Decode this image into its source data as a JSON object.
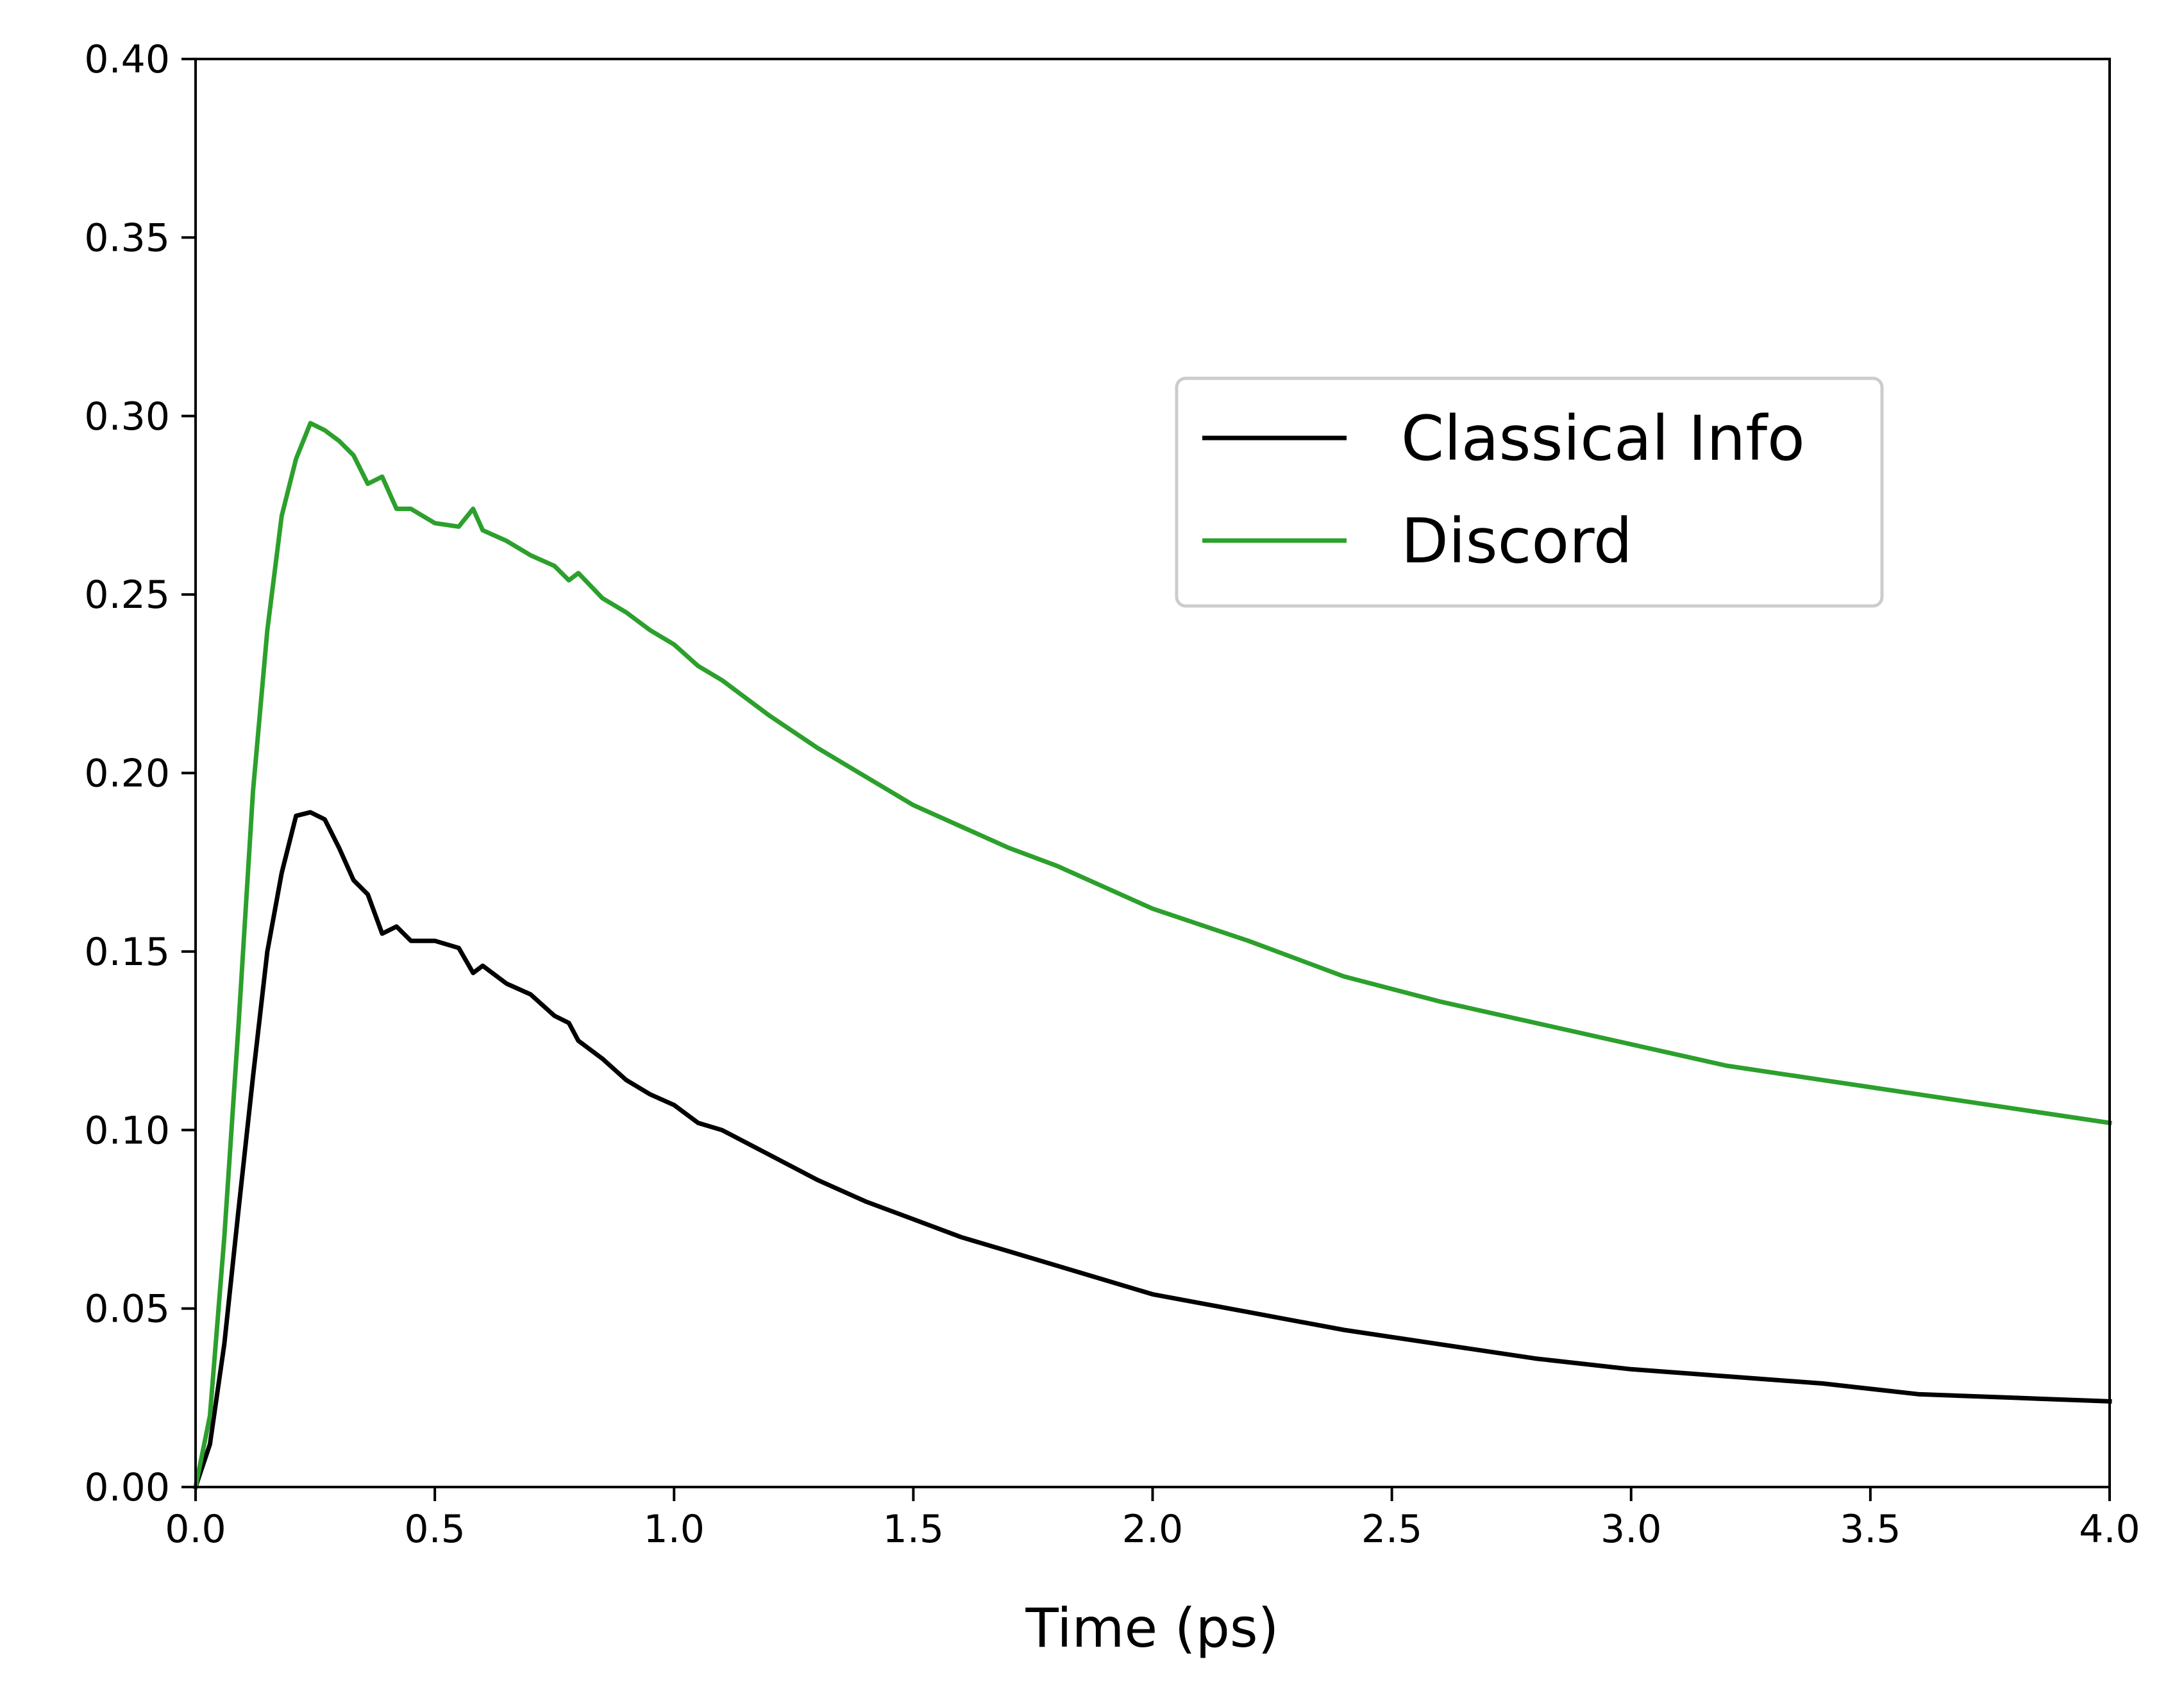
{
  "chart_data": {
    "type": "line",
    "title": "",
    "xlabel": "Time (ps)",
    "ylabel": "",
    "xlim": [
      0.0,
      4.0
    ],
    "ylim": [
      0.0,
      0.4
    ],
    "x_ticks": [
      "0.0",
      "0.5",
      "1.0",
      "1.5",
      "2.0",
      "2.5",
      "3.0",
      "3.5",
      "4.0"
    ],
    "y_ticks": [
      "0.00",
      "0.05",
      "0.10",
      "0.15",
      "0.20",
      "0.25",
      "0.30",
      "0.35",
      "0.40"
    ],
    "grid": false,
    "legend": {
      "placement": "upper-right-center"
    },
    "x": [
      0.0,
      0.03,
      0.06,
      0.09,
      0.12,
      0.15,
      0.18,
      0.21,
      0.24,
      0.27,
      0.3,
      0.33,
      0.36,
      0.39,
      0.42,
      0.45,
      0.5,
      0.55,
      0.58,
      0.6,
      0.65,
      0.7,
      0.75,
      0.78,
      0.8,
      0.85,
      0.9,
      0.95,
      1.0,
      1.05,
      1.1,
      1.2,
      1.3,
      1.4,
      1.5,
      1.6,
      1.7,
      1.8,
      1.9,
      2.0,
      2.2,
      2.4,
      2.6,
      2.8,
      3.0,
      3.2,
      3.4,
      3.6,
      3.8,
      4.0
    ],
    "series": [
      {
        "name": "Classical Info",
        "color": "#000000",
        "values": [
          0.0,
          0.012,
          0.04,
          0.078,
          0.115,
          0.15,
          0.172,
          0.188,
          0.189,
          0.187,
          0.179,
          0.17,
          0.166,
          0.155,
          0.157,
          0.153,
          0.153,
          0.151,
          0.144,
          0.146,
          0.141,
          0.138,
          0.132,
          0.13,
          0.125,
          0.12,
          0.114,
          0.11,
          0.107,
          0.102,
          0.1,
          0.093,
          0.086,
          0.08,
          0.075,
          0.07,
          0.066,
          0.062,
          0.058,
          0.054,
          0.049,
          0.044,
          0.04,
          0.036,
          0.033,
          0.031,
          0.029,
          0.026,
          0.025,
          0.024
        ]
      },
      {
        "name": "Discord",
        "color": "#2ca02c",
        "values": [
          0.0,
          0.02,
          0.07,
          0.13,
          0.195,
          0.24,
          0.272,
          0.288,
          0.298,
          0.296,
          0.293,
          0.289,
          0.281,
          0.283,
          0.274,
          0.274,
          0.27,
          0.269,
          0.274,
          0.268,
          0.265,
          0.261,
          0.258,
          0.254,
          0.256,
          0.249,
          0.245,
          0.24,
          0.236,
          0.23,
          0.226,
          0.216,
          0.207,
          0.199,
          0.191,
          0.185,
          0.179,
          0.174,
          0.168,
          0.162,
          0.153,
          0.143,
          0.136,
          0.13,
          0.124,
          0.118,
          0.114,
          0.11,
          0.106,
          0.102
        ]
      }
    ]
  }
}
